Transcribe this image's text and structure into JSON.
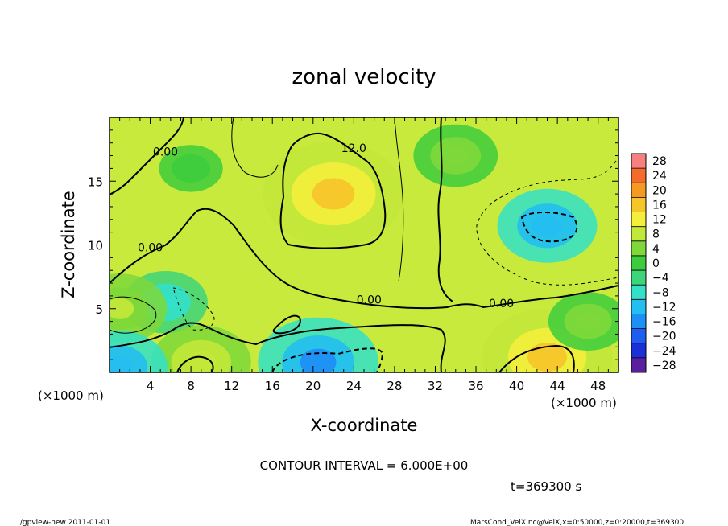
{
  "chart_data": {
    "type": "heatmap",
    "title": "zonal velocity",
    "xlabel": "X-coordinate",
    "ylabel": "Z-coordinate",
    "x_unit_label": "(×1000 m)",
    "y_unit_label": "(×1000 m)",
    "xlim": [
      0,
      50
    ],
    "ylim": [
      0,
      20
    ],
    "x_ticks": [
      4,
      8,
      12,
      16,
      20,
      24,
      28,
      32,
      36,
      40,
      44,
      48
    ],
    "y_ticks": [
      5,
      10,
      15
    ],
    "colorbar": {
      "levels": [
        -28,
        -24,
        -20,
        -16,
        -12,
        -8,
        -4,
        0,
        4,
        8,
        12,
        16,
        20,
        24,
        28
      ],
      "label_values": [
        "28",
        "24",
        "20",
        "16",
        "12",
        "8",
        "4",
        "0",
        "−4",
        "−8",
        "−12",
        "−16",
        "−20",
        "−24",
        "−28"
      ],
      "colors": [
        "#5a1f9e",
        "#1a2fd6",
        "#1f5cf0",
        "#1e8ff5",
        "#24bff0",
        "#33e0c8",
        "#3ed47a",
        "#3dcc3d",
        "#7ed83a",
        "#c2e83a",
        "#f4ef3c",
        "#f6c52a",
        "#f49a22",
        "#f26a2c",
        "#f6807f"
      ]
    },
    "field_features": [
      {
        "x": 22,
        "z": 14,
        "value": 18
      },
      {
        "x": 43,
        "z": 11.5,
        "value": -10
      },
      {
        "x": 20.5,
        "z": 0.8,
        "value": -14
      },
      {
        "x": 43,
        "z": 1.2,
        "value": 16
      },
      {
        "x": 5.5,
        "z": 5.5,
        "value": -7
      },
      {
        "x": 1,
        "z": 5,
        "value": 9
      },
      {
        "x": 9,
        "z": 0.8,
        "value": 10
      },
      {
        "x": 0.8,
        "z": 0.4,
        "value": -10
      },
      {
        "x": 8,
        "z": 16,
        "value": 3
      },
      {
        "x": 34,
        "z": 17,
        "value": 7
      },
      {
        "x": 47,
        "z": 4,
        "value": 6
      }
    ],
    "contour_labels": [
      {
        "text": "12.0",
        "x": 24,
        "z": 17.3
      },
      {
        "text": "0.00",
        "x": 5.5,
        "z": 17
      },
      {
        "text": "0.00",
        "x": 4,
        "z": 9.5
      },
      {
        "text": "0.00",
        "x": 25.5,
        "z": 5.4
      },
      {
        "text": "0.00",
        "x": 38.5,
        "z": 5.1
      }
    ],
    "contour_interval_text": "CONTOUR INTERVAL = 6.000E+00",
    "time_text": "t=369300 s"
  },
  "footer": {
    "left": "./gpview-new   2011-01-01",
    "right": "MarsCond_VelX.nc@VelX,x=0:50000,z=0:20000,t=369300"
  }
}
